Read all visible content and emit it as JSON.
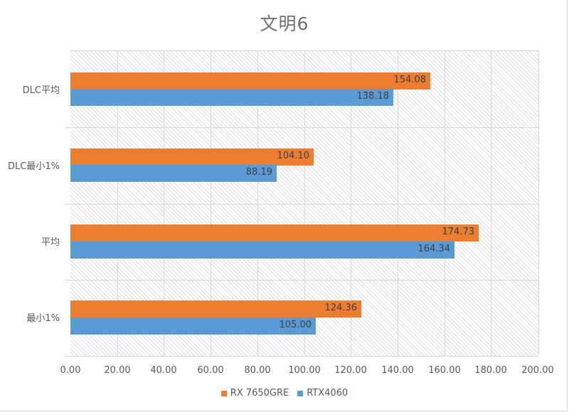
{
  "chart_data": {
    "type": "bar",
    "orientation": "horizontal",
    "title": "文明6",
    "categories": [
      "DLC平均",
      "DLC最小1%",
      "平均",
      "最小1%"
    ],
    "series": [
      {
        "name": "RX 7650GRE",
        "color": "#ED7D31",
        "values": [
          154.08,
          104.1,
          174.73,
          124.36
        ],
        "labels": [
          "154.08",
          "104.10",
          "174.73",
          "124.36"
        ]
      },
      {
        "name": "RTX4060",
        "color": "#5B9BD5",
        "values": [
          138.18,
          88.19,
          164.34,
          105.0
        ],
        "labels": [
          "138.18",
          "88.19",
          "164.34",
          "105.00"
        ]
      }
    ],
    "xlabel": "",
    "ylabel": "",
    "xlim": [
      0,
      200
    ],
    "xticks": [
      "0.00",
      "20.00",
      "40.00",
      "60.00",
      "80.00",
      "100.00",
      "120.00",
      "140.00",
      "160.00",
      "180.00",
      "200.00"
    ],
    "grid": true,
    "legend_position": "bottom",
    "data_labels": true
  }
}
